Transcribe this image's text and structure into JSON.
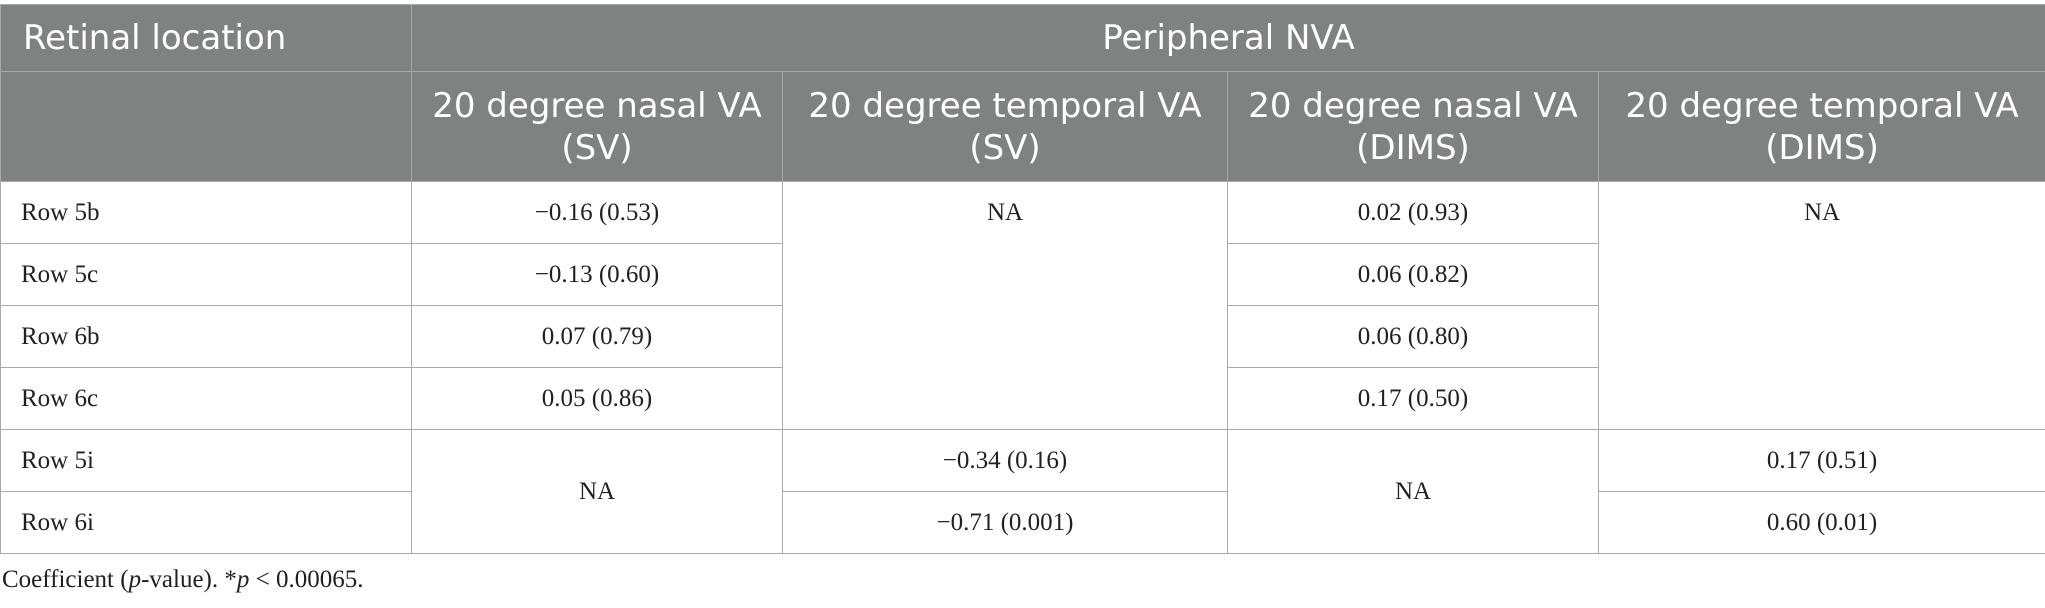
{
  "table": {
    "header_row1": {
      "retinal_location": "Retinal location",
      "group": "Peripheral NVA"
    },
    "header_row2": [
      {
        "line1": "20 degree nasal VA",
        "line2": "(SV)"
      },
      {
        "line1": "20 degree temporal VA",
        "line2": "(SV)"
      },
      {
        "line1": "20 degree nasal VA",
        "line2": "(DIMS)"
      },
      {
        "line1": "20 degree temporal VA",
        "line2": "(DIMS)"
      }
    ],
    "rows": [
      {
        "label": "Row 5b",
        "nasal_sv": "−0.16 (0.53)",
        "nasal_dims": "0.02 (0.93)"
      },
      {
        "label": "Row 5c",
        "nasal_sv": "−0.13 (0.60)",
        "nasal_dims": "0.06 (0.82)"
      },
      {
        "label": "Row 6b",
        "nasal_sv": "0.07 (0.79)",
        "nasal_dims": "0.06 (0.80)"
      },
      {
        "label": "Row 6c",
        "nasal_sv": "0.05 (0.86)",
        "nasal_dims": "0.17 (0.50)"
      },
      {
        "label": "Row 5i",
        "temporal_sv": "−0.34 (0.16)",
        "temporal_dims": "0.17 (0.51)"
      },
      {
        "label": "Row 6i",
        "temporal_sv": "−0.71 (0.001)",
        "temporal_dims": "0.60 (0.01)"
      }
    ],
    "merged_na": {
      "temporal_sv_nasal_rows": "NA",
      "temporal_dims_nasal_rows": "NA",
      "nasal_sv_temporal_rows": "NA",
      "nasal_dims_temporal_rows": "NA"
    }
  },
  "footnote": {
    "part1": "Coefficient (",
    "p1": "p",
    "part2": "-value). *",
    "p2": "p",
    "part3": " < 0.00065."
  },
  "colors": {
    "header_bg": "#808281",
    "header_text": "#ffffff",
    "border": "#a7a9ab",
    "body_text": "#231f20"
  }
}
